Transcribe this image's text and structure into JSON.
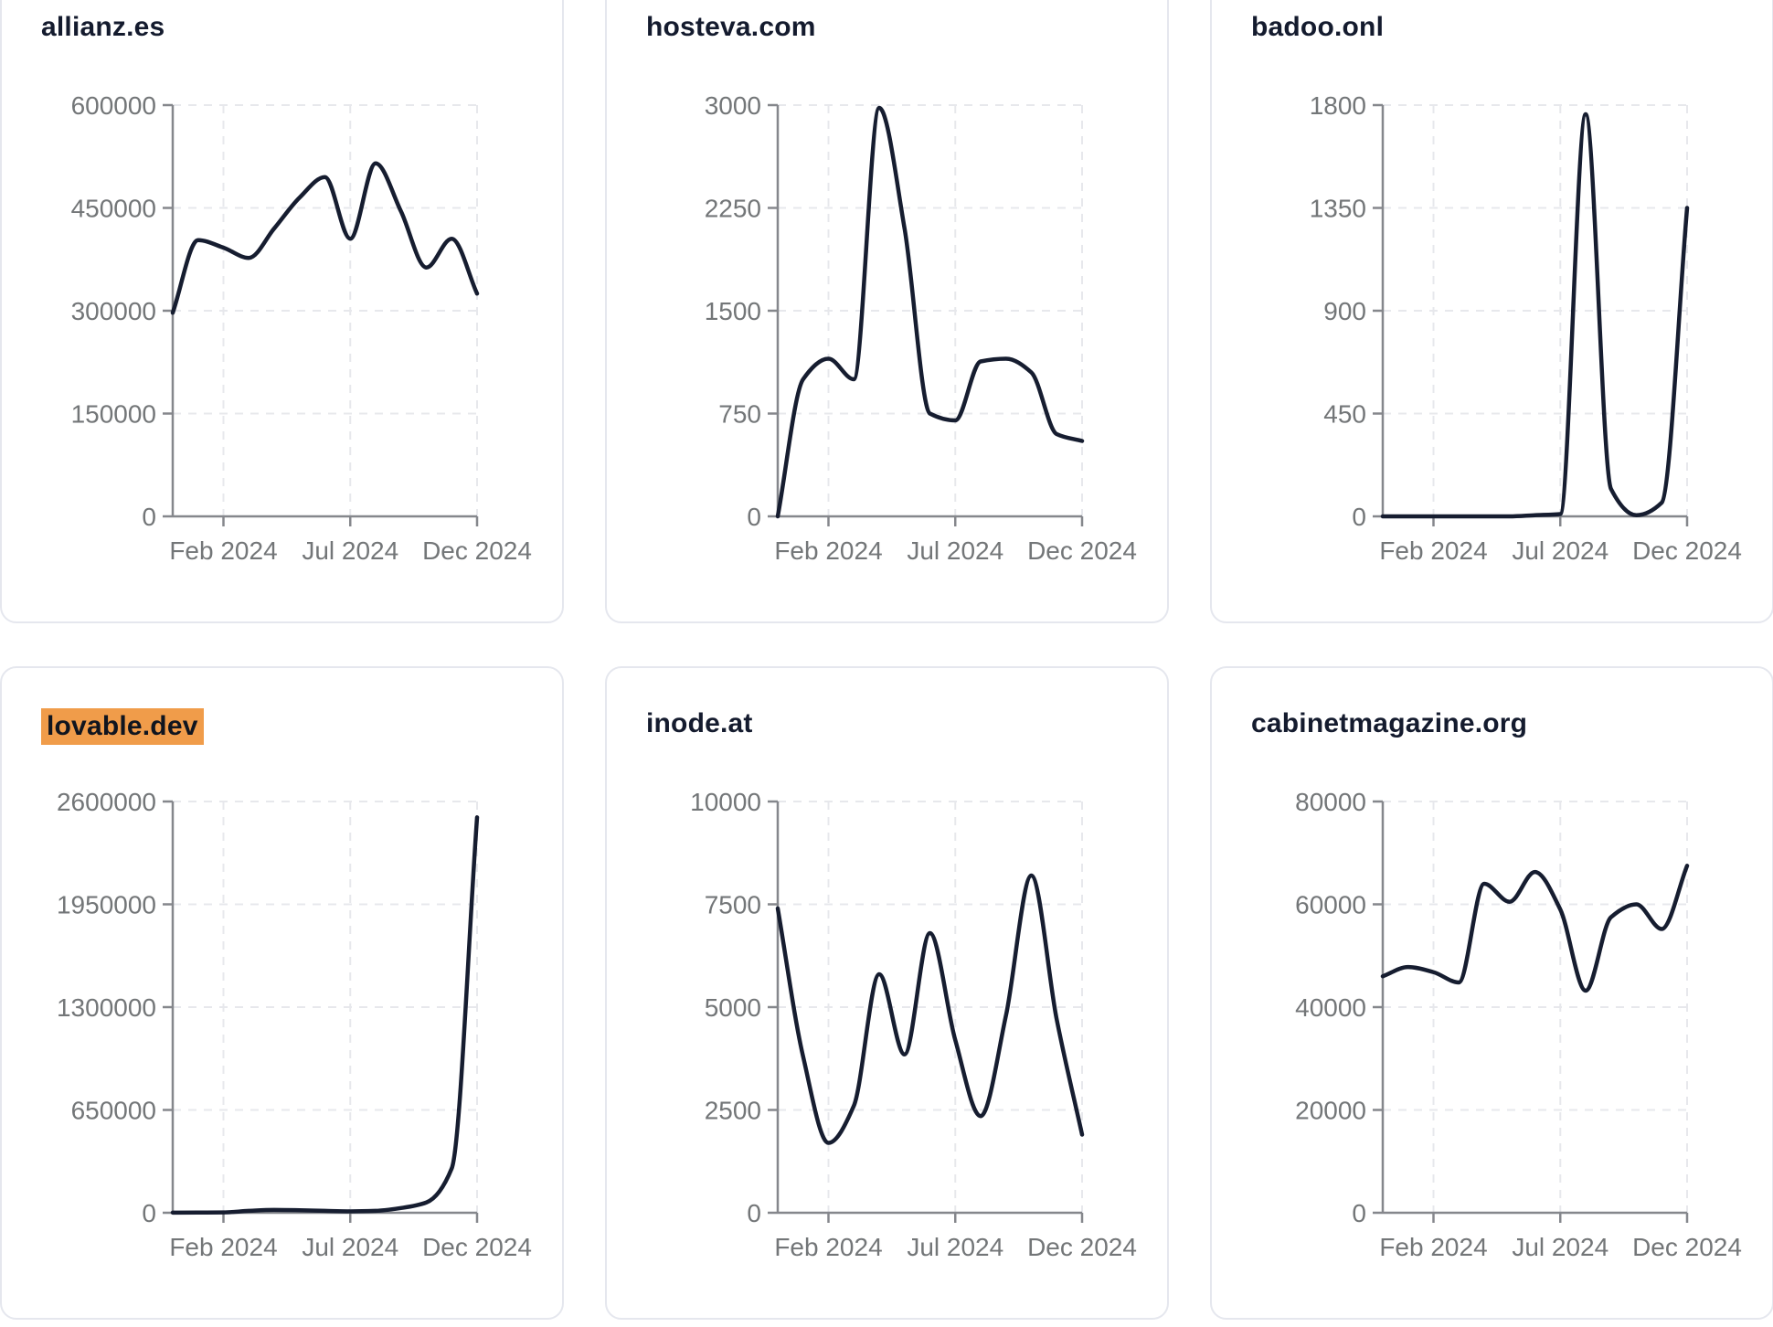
{
  "page": {
    "background": "#ffffff"
  },
  "theme": {
    "card_background": "#ffffff",
    "card_border": "#e5e7ee",
    "line_color": "#161d30",
    "title_color": "#141b2e",
    "tick_label_color": "#737678",
    "axis_color": "#85878c",
    "grid_color": "#e7e8ec",
    "highlight_color": "#f09c4a"
  },
  "chart_data": [
    {
      "type": "line",
      "title": "allianz.es",
      "title_highlighted": false,
      "x": [
        "Dec 2023",
        "Jan 2024",
        "Feb 2024",
        "Mar 2024",
        "Apr 2024",
        "May 2024",
        "Jun 2024",
        "Jul 2024",
        "Aug 2024",
        "Sep 2024",
        "Oct 2024",
        "Nov 2024",
        "Dec 2024"
      ],
      "values": [
        297000,
        403000,
        392000,
        377000,
        420000,
        465000,
        495000,
        405000,
        515000,
        445000,
        363000,
        405000,
        325000
      ],
      "yticks": [
        0,
        150000,
        300000,
        450000,
        600000
      ],
      "ylim": [
        0,
        600000
      ],
      "xticks": [
        {
          "index": 2,
          "label": "Feb 2024"
        },
        {
          "index": 7,
          "label": "Jul 2024"
        },
        {
          "index": 12,
          "label": "Dec 2024"
        }
      ],
      "grid": true,
      "legend": false
    },
    {
      "type": "line",
      "title": "hosteva.com",
      "title_highlighted": false,
      "x": [
        "Dec 2023",
        "Jan 2024",
        "Feb 2024",
        "Mar 2024",
        "Apr 2024",
        "May 2024",
        "Jun 2024",
        "Jul 2024",
        "Aug 2024",
        "Sep 2024",
        "Oct 2024",
        "Nov 2024",
        "Dec 2024"
      ],
      "values": [
        0,
        1000,
        1150,
        1000,
        2980,
        2100,
        750,
        700,
        1130,
        1150,
        1050,
        600,
        550
      ],
      "yticks": [
        0,
        750,
        1500,
        2250,
        3000
      ],
      "ylim": [
        0,
        3000
      ],
      "xticks": [
        {
          "index": 2,
          "label": "Feb 2024"
        },
        {
          "index": 7,
          "label": "Jul 2024"
        },
        {
          "index": 12,
          "label": "Dec 2024"
        }
      ],
      "grid": true,
      "legend": false
    },
    {
      "type": "line",
      "title": "badoo.onl",
      "title_highlighted": false,
      "x": [
        "Dec 2023",
        "Jan 2024",
        "Feb 2024",
        "Mar 2024",
        "Apr 2024",
        "May 2024",
        "Jun 2024",
        "Jul 2024",
        "Aug 2024",
        "Sep 2024",
        "Oct 2024",
        "Nov 2024",
        "Dec 2024"
      ],
      "values": [
        0,
        0,
        0,
        0,
        0,
        0,
        5,
        10,
        1760,
        120,
        5,
        60,
        1350
      ],
      "yticks": [
        0,
        450,
        900,
        1350,
        1800
      ],
      "ylim": [
        0,
        1800
      ],
      "xticks": [
        {
          "index": 2,
          "label": "Feb 2024"
        },
        {
          "index": 7,
          "label": "Jul 2024"
        },
        {
          "index": 12,
          "label": "Dec 2024"
        }
      ],
      "grid": true,
      "legend": false
    },
    {
      "type": "line",
      "title": "lovable.dev",
      "title_highlighted": true,
      "x": [
        "Dec 2023",
        "Jan 2024",
        "Feb 2024",
        "Mar 2024",
        "Apr 2024",
        "May 2024",
        "Jun 2024",
        "Jul 2024",
        "Aug 2024",
        "Sep 2024",
        "Oct 2024",
        "Nov 2024",
        "Dec 2024"
      ],
      "values": [
        1000,
        1500,
        2000,
        12000,
        18000,
        16000,
        12000,
        9000,
        12000,
        30000,
        65000,
        280000,
        2500000
      ],
      "yticks": [
        0,
        650000,
        1300000,
        1950000,
        2600000
      ],
      "ylim": [
        0,
        2600000
      ],
      "xticks": [
        {
          "index": 2,
          "label": "Feb 2024"
        },
        {
          "index": 7,
          "label": "Jul 2024"
        },
        {
          "index": 12,
          "label": "Dec 2024"
        }
      ],
      "grid": true,
      "legend": false
    },
    {
      "type": "line",
      "title": "inode.at",
      "title_highlighted": false,
      "x": [
        "Dec 2023",
        "Jan 2024",
        "Feb 2024",
        "Mar 2024",
        "Apr 2024",
        "May 2024",
        "Jun 2024",
        "Jul 2024",
        "Aug 2024",
        "Sep 2024",
        "Oct 2024",
        "Nov 2024",
        "Dec 2024"
      ],
      "values": [
        7400,
        3800,
        1700,
        2600,
        5800,
        3850,
        6800,
        4200,
        2350,
        4800,
        8200,
        4700,
        1900
      ],
      "yticks": [
        0,
        2500,
        5000,
        7500,
        10000
      ],
      "ylim": [
        0,
        10000
      ],
      "xticks": [
        {
          "index": 2,
          "label": "Feb 2024"
        },
        {
          "index": 7,
          "label": "Jul 2024"
        },
        {
          "index": 12,
          "label": "Dec 2024"
        }
      ],
      "grid": true,
      "legend": false
    },
    {
      "type": "line",
      "title": "cabinetmagazine.org",
      "title_highlighted": false,
      "x": [
        "Dec 2023",
        "Jan 2024",
        "Feb 2024",
        "Mar 2024",
        "Apr 2024",
        "May 2024",
        "Jun 2024",
        "Jul 2024",
        "Aug 2024",
        "Sep 2024",
        "Oct 2024",
        "Nov 2024",
        "Dec 2024"
      ],
      "values": [
        46000,
        47800,
        46800,
        44800,
        64000,
        60500,
        66300,
        59000,
        43200,
        57500,
        60000,
        55200,
        67500
      ],
      "yticks": [
        0,
        20000,
        40000,
        60000,
        80000
      ],
      "ylim": [
        0,
        80000
      ],
      "xticks": [
        {
          "index": 2,
          "label": "Feb 2024"
        },
        {
          "index": 7,
          "label": "Jul 2024"
        },
        {
          "index": 12,
          "label": "Dec 2024"
        }
      ],
      "grid": true,
      "legend": false
    }
  ]
}
